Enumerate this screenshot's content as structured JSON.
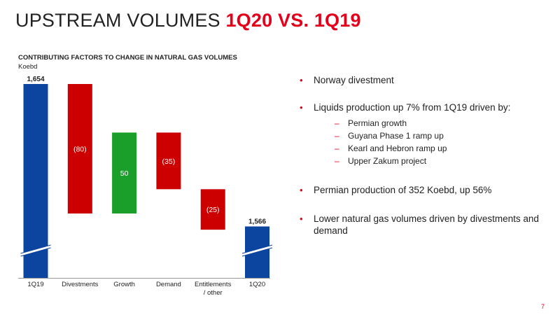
{
  "slide": {
    "title_main": "UPSTREAM VOLUMES",
    "title_accent": "1Q20 VS. 1Q19",
    "page_number": "7",
    "colors": {
      "accent": "#e2001a",
      "total": "#0b45a0",
      "decrease": "#cc0000",
      "increase": "#1aa02a"
    }
  },
  "chart_data": {
    "type": "bar",
    "subtype": "waterfall",
    "title": "CONTRIBUTING FACTORS TO CHANGE IN NATURAL GAS VOLUMES",
    "ylabel": "Koebd",
    "axis_break": true,
    "categories": [
      "1Q19",
      "Divestments",
      "Growth",
      "Demand",
      "Entitlements / other",
      "1Q20"
    ],
    "values": [
      1654,
      -80,
      50,
      -35,
      -25,
      1566
    ],
    "labels": [
      "1,654",
      "(80)",
      "50",
      "(35)",
      "(25)",
      "1,566"
    ],
    "kinds": [
      "total",
      "decrease",
      "increase",
      "decrease",
      "decrease",
      "total"
    ],
    "colors": [
      "#0b45a0",
      "#cc0000",
      "#1aa02a",
      "#cc0000",
      "#cc0000",
      "#0b45a0"
    ]
  },
  "bullets": [
    {
      "text": "Norway divestment",
      "subs": []
    },
    {
      "text": "Liquids production up 7% from 1Q19 driven by:",
      "subs": [
        "Permian growth",
        "Guyana Phase 1 ramp up",
        "Kearl and Hebron ramp up",
        "Upper Zakum project"
      ]
    },
    {
      "text": "Permian production of 352 Koebd, up 56%",
      "subs": []
    },
    {
      "text": "Lower natural gas volumes driven by divestments and demand",
      "subs": []
    }
  ],
  "icons": {
    "bullet": "•",
    "dash": "–"
  }
}
